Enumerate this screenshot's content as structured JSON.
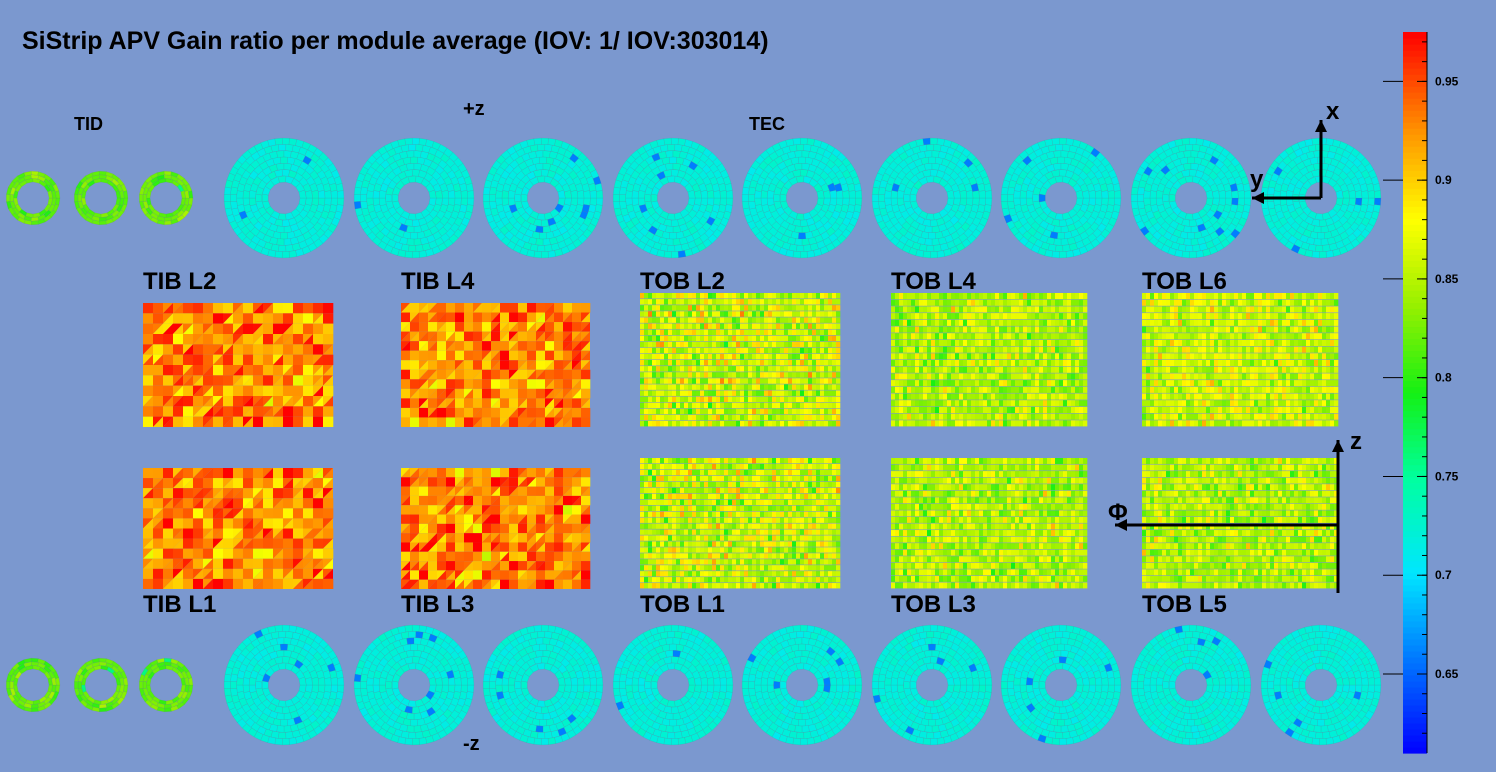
{
  "chart_data": {
    "type": "heatmap",
    "title": "SiStrip APV Gain ratio per module average (IOV: 1/ IOV:303014)",
    "labels": {
      "tid": "TID",
      "tec": "TEC",
      "plus_z": "+z",
      "minus_z": "-z"
    },
    "colorbar": {
      "min": 0.61,
      "max": 0.975,
      "ticks": [
        {
          "value": 0.65,
          "label": "0.65"
        },
        {
          "value": 0.7,
          "label": "0.7"
        },
        {
          "value": 0.75,
          "label": "0.75"
        },
        {
          "value": 0.8,
          "label": "0.8"
        },
        {
          "value": 0.85,
          "label": "0.85"
        },
        {
          "value": 0.9,
          "label": "0.9"
        },
        {
          "value": 0.95,
          "label": "0.95"
        }
      ]
    },
    "barrel_layers": [
      {
        "name": "TIB L2",
        "mean": 0.93,
        "spread": 0.05
      },
      {
        "name": "TIB L4",
        "mean": 0.93,
        "spread": 0.05
      },
      {
        "name": "TOB L2",
        "mean": 0.86,
        "spread": 0.05
      },
      {
        "name": "TOB L4",
        "mean": 0.85,
        "spread": 0.04
      },
      {
        "name": "TOB L6",
        "mean": 0.86,
        "spread": 0.04
      },
      {
        "name": "TIB L1",
        "mean": 0.93,
        "spread": 0.05
      },
      {
        "name": "TIB L3",
        "mean": 0.93,
        "spread": 0.05
      },
      {
        "name": "TOB L1",
        "mean": 0.86,
        "spread": 0.05
      },
      {
        "name": "TOB L3",
        "mean": 0.85,
        "spread": 0.04
      },
      {
        "name": "TOB L5",
        "mean": 0.85,
        "spread": 0.04
      }
    ],
    "tid_mean": 0.82,
    "tec_mean": 0.72,
    "axes": {
      "endcap_x": "x",
      "endcap_y": "y",
      "barrel_z": "z",
      "barrel_phi": "Φ"
    }
  }
}
